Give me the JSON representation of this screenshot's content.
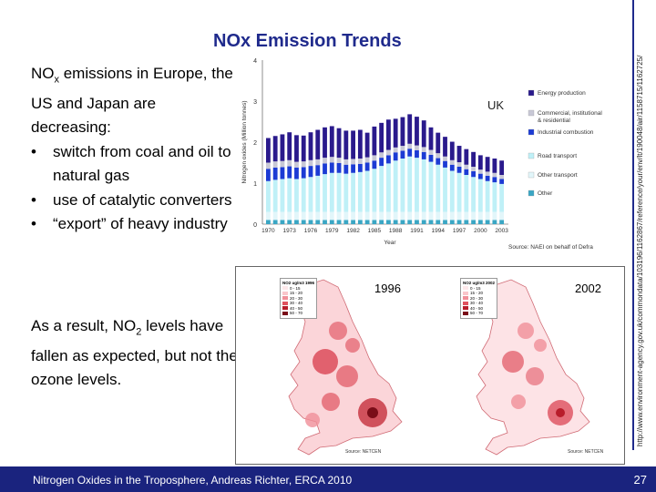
{
  "title": "NOx Emission Trends",
  "intro": {
    "line_pre": "NO",
    "line_sub": "x",
    "line_post": " emissions in Europe, the US and Japan are decreasing:",
    "bullets": [
      "switch from coal and oil to natural gas",
      "use of catalytic converters",
      "“export” of heavy industry"
    ]
  },
  "result": {
    "pre": "As a result, NO",
    "sub": "2",
    "post": " levels have fallen as expected, but not the ozone levels."
  },
  "source_url": "http://www.environment-agency.gov.uk/commondata/103196/1162867/reference/your/env/lt/190048/air/1158715/1162725/",
  "footer": {
    "text": "Nitrogen Oxides in the Troposphere, Andreas Richter, ERCA 2010",
    "page": "27"
  },
  "chart_data": {
    "type": "bar",
    "stacked": true,
    "title": "UK",
    "xlabel": "Year",
    "ylabel": "Nitrogen oxides (Million tonnes)",
    "ylim": [
      0,
      4
    ],
    "yticks": [
      "0",
      "1",
      "2",
      "3",
      "4"
    ],
    "xtick_labels": [
      "1970",
      "1973",
      "1976",
      "1979",
      "1982",
      "1985",
      "1988",
      "1991",
      "1994",
      "1997",
      "2000",
      "2003"
    ],
    "source": "Source: NAEI on behalf of Defra",
    "categories": [
      "1970",
      "1971",
      "1972",
      "1973",
      "1974",
      "1975",
      "1976",
      "1977",
      "1978",
      "1979",
      "1980",
      "1981",
      "1982",
      "1983",
      "1984",
      "1985",
      "1986",
      "1987",
      "1988",
      "1989",
      "1990",
      "1991",
      "1992",
      "1993",
      "1994",
      "1995",
      "1996",
      "1997",
      "1998",
      "1999",
      "2000",
      "2001",
      "2002",
      "2003"
    ],
    "series": [
      {
        "name": "Other",
        "color": "#3aa6c4",
        "values": [
          0.1,
          0.1,
          0.1,
          0.1,
          0.1,
          0.1,
          0.1,
          0.1,
          0.1,
          0.1,
          0.1,
          0.1,
          0.1,
          0.1,
          0.1,
          0.1,
          0.1,
          0.1,
          0.1,
          0.1,
          0.1,
          0.1,
          0.1,
          0.1,
          0.1,
          0.1,
          0.1,
          0.1,
          0.1,
          0.1,
          0.1,
          0.1,
          0.1,
          0.1
        ]
      },
      {
        "name": "Other transport",
        "color": "#e2f6fa",
        "values": [
          0.2,
          0.2,
          0.2,
          0.2,
          0.2,
          0.2,
          0.2,
          0.2,
          0.2,
          0.2,
          0.2,
          0.2,
          0.2,
          0.2,
          0.2,
          0.2,
          0.2,
          0.2,
          0.2,
          0.2,
          0.2,
          0.2,
          0.2,
          0.2,
          0.2,
          0.2,
          0.2,
          0.2,
          0.2,
          0.2,
          0.2,
          0.2,
          0.2,
          0.2
        ]
      },
      {
        "name": "Road transport",
        "color": "#bff0f7",
        "values": [
          0.75,
          0.78,
          0.8,
          0.82,
          0.8,
          0.82,
          0.85,
          0.88,
          0.92,
          0.95,
          0.95,
          0.93,
          0.95,
          0.97,
          1.0,
          1.05,
          1.12,
          1.18,
          1.25,
          1.3,
          1.35,
          1.32,
          1.28,
          1.22,
          1.15,
          1.08,
          1.0,
          0.95,
          0.9,
          0.85,
          0.8,
          0.75,
          0.72,
          0.68
        ]
      },
      {
        "name": "Industrial combustion",
        "color": "#1c3bd4",
        "values": [
          0.3,
          0.3,
          0.29,
          0.29,
          0.28,
          0.27,
          0.27,
          0.26,
          0.26,
          0.25,
          0.24,
          0.22,
          0.21,
          0.2,
          0.2,
          0.2,
          0.2,
          0.2,
          0.2,
          0.19,
          0.19,
          0.18,
          0.18,
          0.17,
          0.16,
          0.16,
          0.15,
          0.15,
          0.14,
          0.14,
          0.13,
          0.13,
          0.13,
          0.12
        ]
      },
      {
        "name": "Commercial, institutional & residential",
        "color": "#c8c8d6",
        "values": [
          0.15,
          0.15,
          0.15,
          0.15,
          0.14,
          0.14,
          0.14,
          0.14,
          0.14,
          0.14,
          0.13,
          0.13,
          0.13,
          0.13,
          0.13,
          0.13,
          0.13,
          0.13,
          0.12,
          0.12,
          0.12,
          0.12,
          0.12,
          0.12,
          0.12,
          0.11,
          0.11,
          0.11,
          0.11,
          0.11,
          0.1,
          0.1,
          0.1,
          0.1
        ]
      },
      {
        "name": "Energy production",
        "color": "#2a1a8c",
        "values": [
          0.6,
          0.62,
          0.65,
          0.68,
          0.65,
          0.63,
          0.68,
          0.72,
          0.74,
          0.75,
          0.72,
          0.7,
          0.69,
          0.7,
          0.6,
          0.7,
          0.72,
          0.74,
          0.7,
          0.7,
          0.72,
          0.7,
          0.65,
          0.55,
          0.5,
          0.48,
          0.45,
          0.4,
          0.38,
          0.36,
          0.35,
          0.36,
          0.35,
          0.35
        ]
      }
    ]
  },
  "maps": [
    {
      "year": "1996",
      "legend_title": "NO2 ug/m3 1996",
      "legend": [
        "0 - 15",
        "15 - 20",
        "20 - 30",
        "30 - 40",
        "40 - 50",
        "50 - 70"
      ],
      "source": "Source: NETCEN"
    },
    {
      "year": "2002",
      "legend_title": "NO2 ug/m3 2002",
      "legend": [
        "0 - 15",
        "15 - 20",
        "20 - 30",
        "30 - 40",
        "40 - 50",
        "50 - 70"
      ],
      "source": "Source: NETCEN"
    }
  ],
  "map_legend_colors": [
    "#fde8ea",
    "#f9c6cb",
    "#f08f99",
    "#e0525f",
    "#b81d2b",
    "#7a0d18"
  ]
}
